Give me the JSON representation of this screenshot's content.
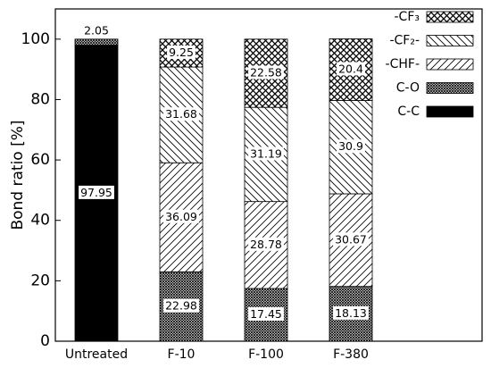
{
  "chart_data": {
    "type": "stacked_bar",
    "y_label": "Bond ratio [%]",
    "categories": [
      "Untreated",
      "F-10",
      "F-100",
      "F-380"
    ],
    "series": [
      {
        "name": "C-C",
        "color": "#000000",
        "values": [
          97.95,
          null,
          null,
          null
        ]
      },
      {
        "name": "C-O",
        "color": "#000000",
        "values": [
          2.05,
          22.98,
          17.45,
          18.13
        ]
      },
      {
        "name": "-CHF-",
        "color": "#000000",
        "values": [
          null,
          36.09,
          28.78,
          30.67
        ]
      },
      {
        "name": "-CF₂-",
        "color": "#000000",
        "values": [
          null,
          31.68,
          31.19,
          30.9
        ]
      },
      {
        "name": "-CF₃",
        "color": "#000000",
        "values": [
          null,
          9.25,
          22.58,
          20.4
        ]
      }
    ],
    "ylim": [
      0,
      110
    ],
    "yticks": [
      0,
      20,
      40,
      60,
      80,
      100
    ]
  }
}
